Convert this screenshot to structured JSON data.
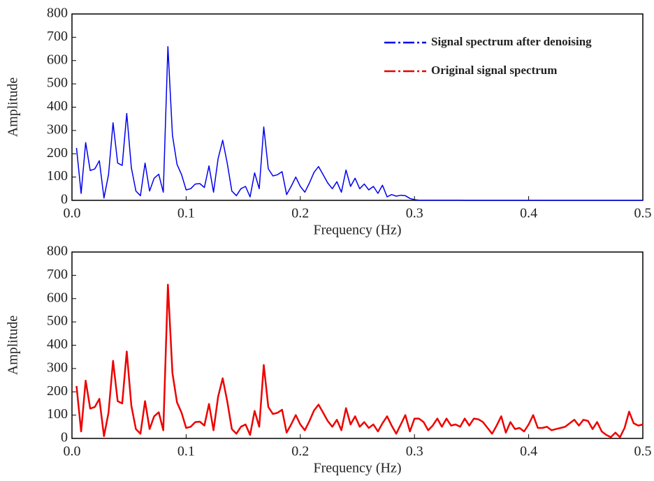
{
  "chart_data": [
    {
      "type": "line",
      "xlabel": "Frequency (Hz)",
      "ylabel": "Amplitude",
      "x": [
        0.004,
        0.008,
        0.012,
        0.016,
        0.02,
        0.024,
        0.028,
        0.032,
        0.036,
        0.04,
        0.044,
        0.048,
        0.052,
        0.056,
        0.06,
        0.064,
        0.068,
        0.072,
        0.076,
        0.08,
        0.084,
        0.088,
        0.092,
        0.096,
        0.1,
        0.104,
        0.108,
        0.112,
        0.116,
        0.12,
        0.124,
        0.128,
        0.132,
        0.136,
        0.14,
        0.144,
        0.148,
        0.152,
        0.156,
        0.16,
        0.164,
        0.168,
        0.172,
        0.176,
        0.18,
        0.184,
        0.188,
        0.192,
        0.196,
        0.2,
        0.204,
        0.208,
        0.212,
        0.216,
        0.22,
        0.224,
        0.228,
        0.232,
        0.236,
        0.24,
        0.244,
        0.248,
        0.252,
        0.256,
        0.26,
        0.264,
        0.268,
        0.272,
        0.276,
        0.28,
        0.284,
        0.288,
        0.292,
        0.296,
        0.3,
        0.304,
        0.308,
        0.312,
        0.316,
        0.32,
        0.324,
        0.328,
        0.332,
        0.336,
        0.34,
        0.344,
        0.348,
        0.352,
        0.356,
        0.36,
        0.364,
        0.368,
        0.372,
        0.376,
        0.38,
        0.384,
        0.388,
        0.392,
        0.396,
        0.4,
        0.404,
        0.408,
        0.412,
        0.416,
        0.42,
        0.424,
        0.428,
        0.432,
        0.436,
        0.44,
        0.444,
        0.448,
        0.452,
        0.456,
        0.46,
        0.464,
        0.468,
        0.472,
        0.476,
        0.48,
        0.484,
        0.488,
        0.492,
        0.496,
        0.5
      ],
      "series": [
        {
          "name": "Signal spectrum after denoising",
          "color": "#0000ee",
          "values": [
            225,
            30,
            248,
            128,
            135,
            170,
            10,
            110,
            333,
            160,
            150,
            373,
            140,
            40,
            20,
            160,
            40,
            95,
            112,
            35,
            660,
            280,
            155,
            110,
            45,
            50,
            70,
            72,
            55,
            148,
            35,
            180,
            258,
            160,
            40,
            20,
            50,
            60,
            15,
            118,
            50,
            315,
            135,
            105,
            110,
            123,
            25,
            60,
            100,
            60,
            35,
            75,
            120,
            145,
            110,
            75,
            50,
            80,
            35,
            130,
            60,
            95,
            50,
            70,
            45,
            60,
            30,
            65,
            15,
            25,
            18,
            22,
            20,
            8,
            3,
            1,
            1,
            1,
            1,
            1,
            1,
            1,
            1,
            1,
            1,
            0,
            0,
            0,
            0,
            0,
            0,
            0,
            0,
            0,
            0,
            0,
            0,
            0,
            0,
            0,
            0,
            0,
            0,
            0,
            0,
            0,
            0,
            0,
            0,
            0,
            0,
            0,
            0,
            0,
            0,
            0,
            0,
            0,
            0,
            0,
            0,
            0,
            0,
            0,
            0
          ]
        }
      ],
      "xlim": [
        0,
        0.5
      ],
      "xticks": [
        {
          "value": 0,
          "label": "0.0"
        },
        0.1,
        0.2,
        0.3,
        0.4,
        0.5
      ],
      "ylim": [
        0,
        800
      ],
      "yticks": [
        0,
        100,
        200,
        300,
        400,
        500,
        600,
        700,
        800
      ]
    },
    {
      "type": "line",
      "xlabel": "Frequency (Hz)",
      "ylabel": "Amplitude",
      "x": [
        0.004,
        0.008,
        0.012,
        0.016,
        0.02,
        0.024,
        0.028,
        0.032,
        0.036,
        0.04,
        0.044,
        0.048,
        0.052,
        0.056,
        0.06,
        0.064,
        0.068,
        0.072,
        0.076,
        0.08,
        0.084,
        0.088,
        0.092,
        0.096,
        0.1,
        0.104,
        0.108,
        0.112,
        0.116,
        0.12,
        0.124,
        0.128,
        0.132,
        0.136,
        0.14,
        0.144,
        0.148,
        0.152,
        0.156,
        0.16,
        0.164,
        0.168,
        0.172,
        0.176,
        0.18,
        0.184,
        0.188,
        0.192,
        0.196,
        0.2,
        0.204,
        0.208,
        0.212,
        0.216,
        0.22,
        0.224,
        0.228,
        0.232,
        0.236,
        0.24,
        0.244,
        0.248,
        0.252,
        0.256,
        0.26,
        0.264,
        0.268,
        0.272,
        0.276,
        0.28,
        0.284,
        0.288,
        0.292,
        0.296,
        0.3,
        0.304,
        0.308,
        0.312,
        0.316,
        0.32,
        0.324,
        0.328,
        0.332,
        0.336,
        0.34,
        0.344,
        0.348,
        0.352,
        0.356,
        0.36,
        0.364,
        0.368,
        0.372,
        0.376,
        0.38,
        0.384,
        0.388,
        0.392,
        0.396,
        0.4,
        0.404,
        0.408,
        0.412,
        0.416,
        0.42,
        0.424,
        0.428,
        0.432,
        0.436,
        0.44,
        0.444,
        0.448,
        0.452,
        0.456,
        0.46,
        0.464,
        0.468,
        0.472,
        0.476,
        0.48,
        0.484,
        0.488,
        0.492,
        0.496,
        0.5
      ],
      "series": [
        {
          "name": "Original signal spectrum",
          "color": "#ee0000",
          "values": [
            225,
            30,
            248,
            128,
            135,
            170,
            10,
            110,
            333,
            160,
            150,
            373,
            140,
            40,
            20,
            160,
            40,
            95,
            112,
            35,
            660,
            280,
            155,
            110,
            45,
            50,
            70,
            72,
            55,
            148,
            35,
            180,
            258,
            160,
            40,
            20,
            50,
            60,
            15,
            118,
            50,
            315,
            135,
            105,
            110,
            123,
            25,
            60,
            100,
            60,
            35,
            75,
            120,
            145,
            110,
            75,
            50,
            80,
            35,
            130,
            60,
            95,
            50,
            70,
            45,
            60,
            30,
            65,
            95,
            55,
            20,
            60,
            100,
            30,
            85,
            85,
            70,
            35,
            55,
            85,
            50,
            85,
            55,
            60,
            50,
            85,
            55,
            85,
            82,
            70,
            45,
            20,
            55,
            95,
            25,
            70,
            40,
            45,
            30,
            60,
            100,
            45,
            45,
            50,
            35,
            40,
            45,
            50,
            65,
            80,
            55,
            80,
            75,
            40,
            70,
            30,
            15,
            5,
            25,
            5,
            45,
            115,
            65,
            55,
            60
          ]
        }
      ],
      "xlim": [
        0,
        0.5
      ],
      "xticks": [
        {
          "value": 0,
          "label": "0.0"
        },
        0.1,
        0.2,
        0.3,
        0.4,
        0.5
      ],
      "ylim": [
        0,
        800
      ],
      "yticks": [
        0,
        100,
        200,
        300,
        400,
        500,
        600,
        700,
        800
      ]
    }
  ]
}
